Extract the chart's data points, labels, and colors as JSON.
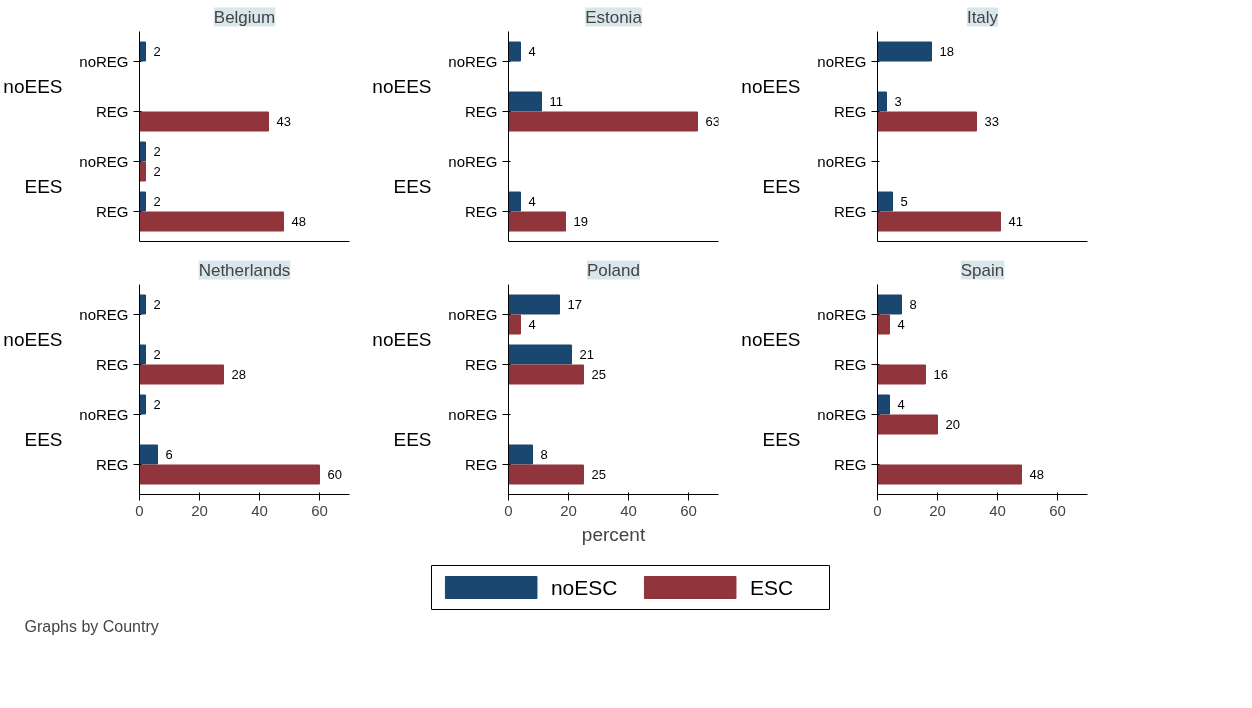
{
  "chart_data": [
    {
      "type": "bar",
      "orientation": "horizontal",
      "title": "Belgium",
      "categories": [
        "noREG",
        "REG",
        "noREG",
        "REG"
      ],
      "annotations": [
        "noEES",
        "EES"
      ],
      "series": [
        {
          "name": "noESC",
          "color": "#1a476f",
          "values": [
            2,
            null,
            2,
            2
          ]
        },
        {
          "name": "ESC",
          "color": "#90353b",
          "values": [
            null,
            43,
            2,
            48
          ]
        }
      ],
      "xlim": [
        0,
        70
      ],
      "xticks": [
        0,
        20,
        40,
        60
      ],
      "tick_labels": "y",
      "data_labels": true,
      "legend": "bottom"
    },
    {
      "type": "bar",
      "orientation": "horizontal",
      "title": "Estonia",
      "categories": [
        "noREG",
        "REG",
        "noREG",
        "REG"
      ],
      "annotations": [
        "noEES",
        "EES"
      ],
      "series": [
        {
          "color": "#1a476f",
          "values": [
            4,
            11,
            null,
            4
          ]
        },
        {
          "color": "#90353b",
          "values": [
            null,
            63,
            null,
            19
          ]
        }
      ],
      "xlim": [
        0,
        70
      ],
      "xticks": [
        0,
        20,
        40,
        60
      ],
      "tick_labels": "y",
      "data_labels": true
    },
    {
      "type": "bar",
      "orientation": "horizontal",
      "title": "Italy",
      "categories": [
        "noREG",
        "REG",
        "noREG",
        "REG"
      ],
      "annotations": [
        "noEES",
        "EES"
      ],
      "series": [
        {
          "color": "#1a476f",
          "values": [
            18,
            3,
            null,
            5
          ]
        },
        {
          "color": "#90353b",
          "values": [
            null,
            33,
            null,
            41
          ]
        }
      ],
      "xlim": [
        0,
        70
      ],
      "xticks": [
        0,
        20,
        40,
        60
      ],
      "tick_labels": "y",
      "data_labels": true
    },
    {
      "type": "bar",
      "orientation": "horizontal",
      "title": "Netherlands",
      "categories": [
        "noREG",
        "REG",
        "noREG",
        "REG"
      ],
      "annotations": [
        "noEES",
        "EES"
      ],
      "series": [
        {
          "color": "#1a476f",
          "values": [
            2,
            2,
            2,
            6
          ]
        },
        {
          "color": "#90353b",
          "values": [
            null,
            28,
            null,
            60
          ]
        }
      ],
      "xlim": [
        0,
        70
      ],
      "xticks": [
        0,
        20,
        40,
        60
      ],
      "data_labels": true
    },
    {
      "type": "bar",
      "orientation": "horizontal",
      "title": "Poland",
      "xlabel": "percent",
      "categories": [
        "noREG",
        "REG",
        "noREG",
        "REG"
      ],
      "annotations": [
        "noEES",
        "EES"
      ],
      "series": [
        {
          "color": "#1a476f",
          "values": [
            17,
            21,
            null,
            8
          ]
        },
        {
          "color": "#90353b",
          "values": [
            4,
            25,
            null,
            25
          ]
        }
      ],
      "xlim": [
        0,
        70
      ],
      "xticks": [
        0,
        20,
        40,
        60
      ],
      "data_labels": true
    },
    {
      "type": "bar",
      "orientation": "horizontal",
      "title": "Spain",
      "categories": [
        "noREG",
        "REG",
        "noREG",
        "REG"
      ],
      "annotations": [
        "noEES",
        "EES"
      ],
      "series": [
        {
          "color": "#1a476f",
          "values": [
            8,
            null,
            4,
            null
          ]
        },
        {
          "color": "#90353b",
          "values": [
            4,
            16,
            20,
            48
          ]
        }
      ],
      "xlim": [
        0,
        70
      ],
      "xticks": [
        0,
        20,
        40,
        60
      ],
      "data_labels": true
    },
    {
      "type": "other",
      "annotations": [
        "Graphs by Country"
      ]
    }
  ]
}
